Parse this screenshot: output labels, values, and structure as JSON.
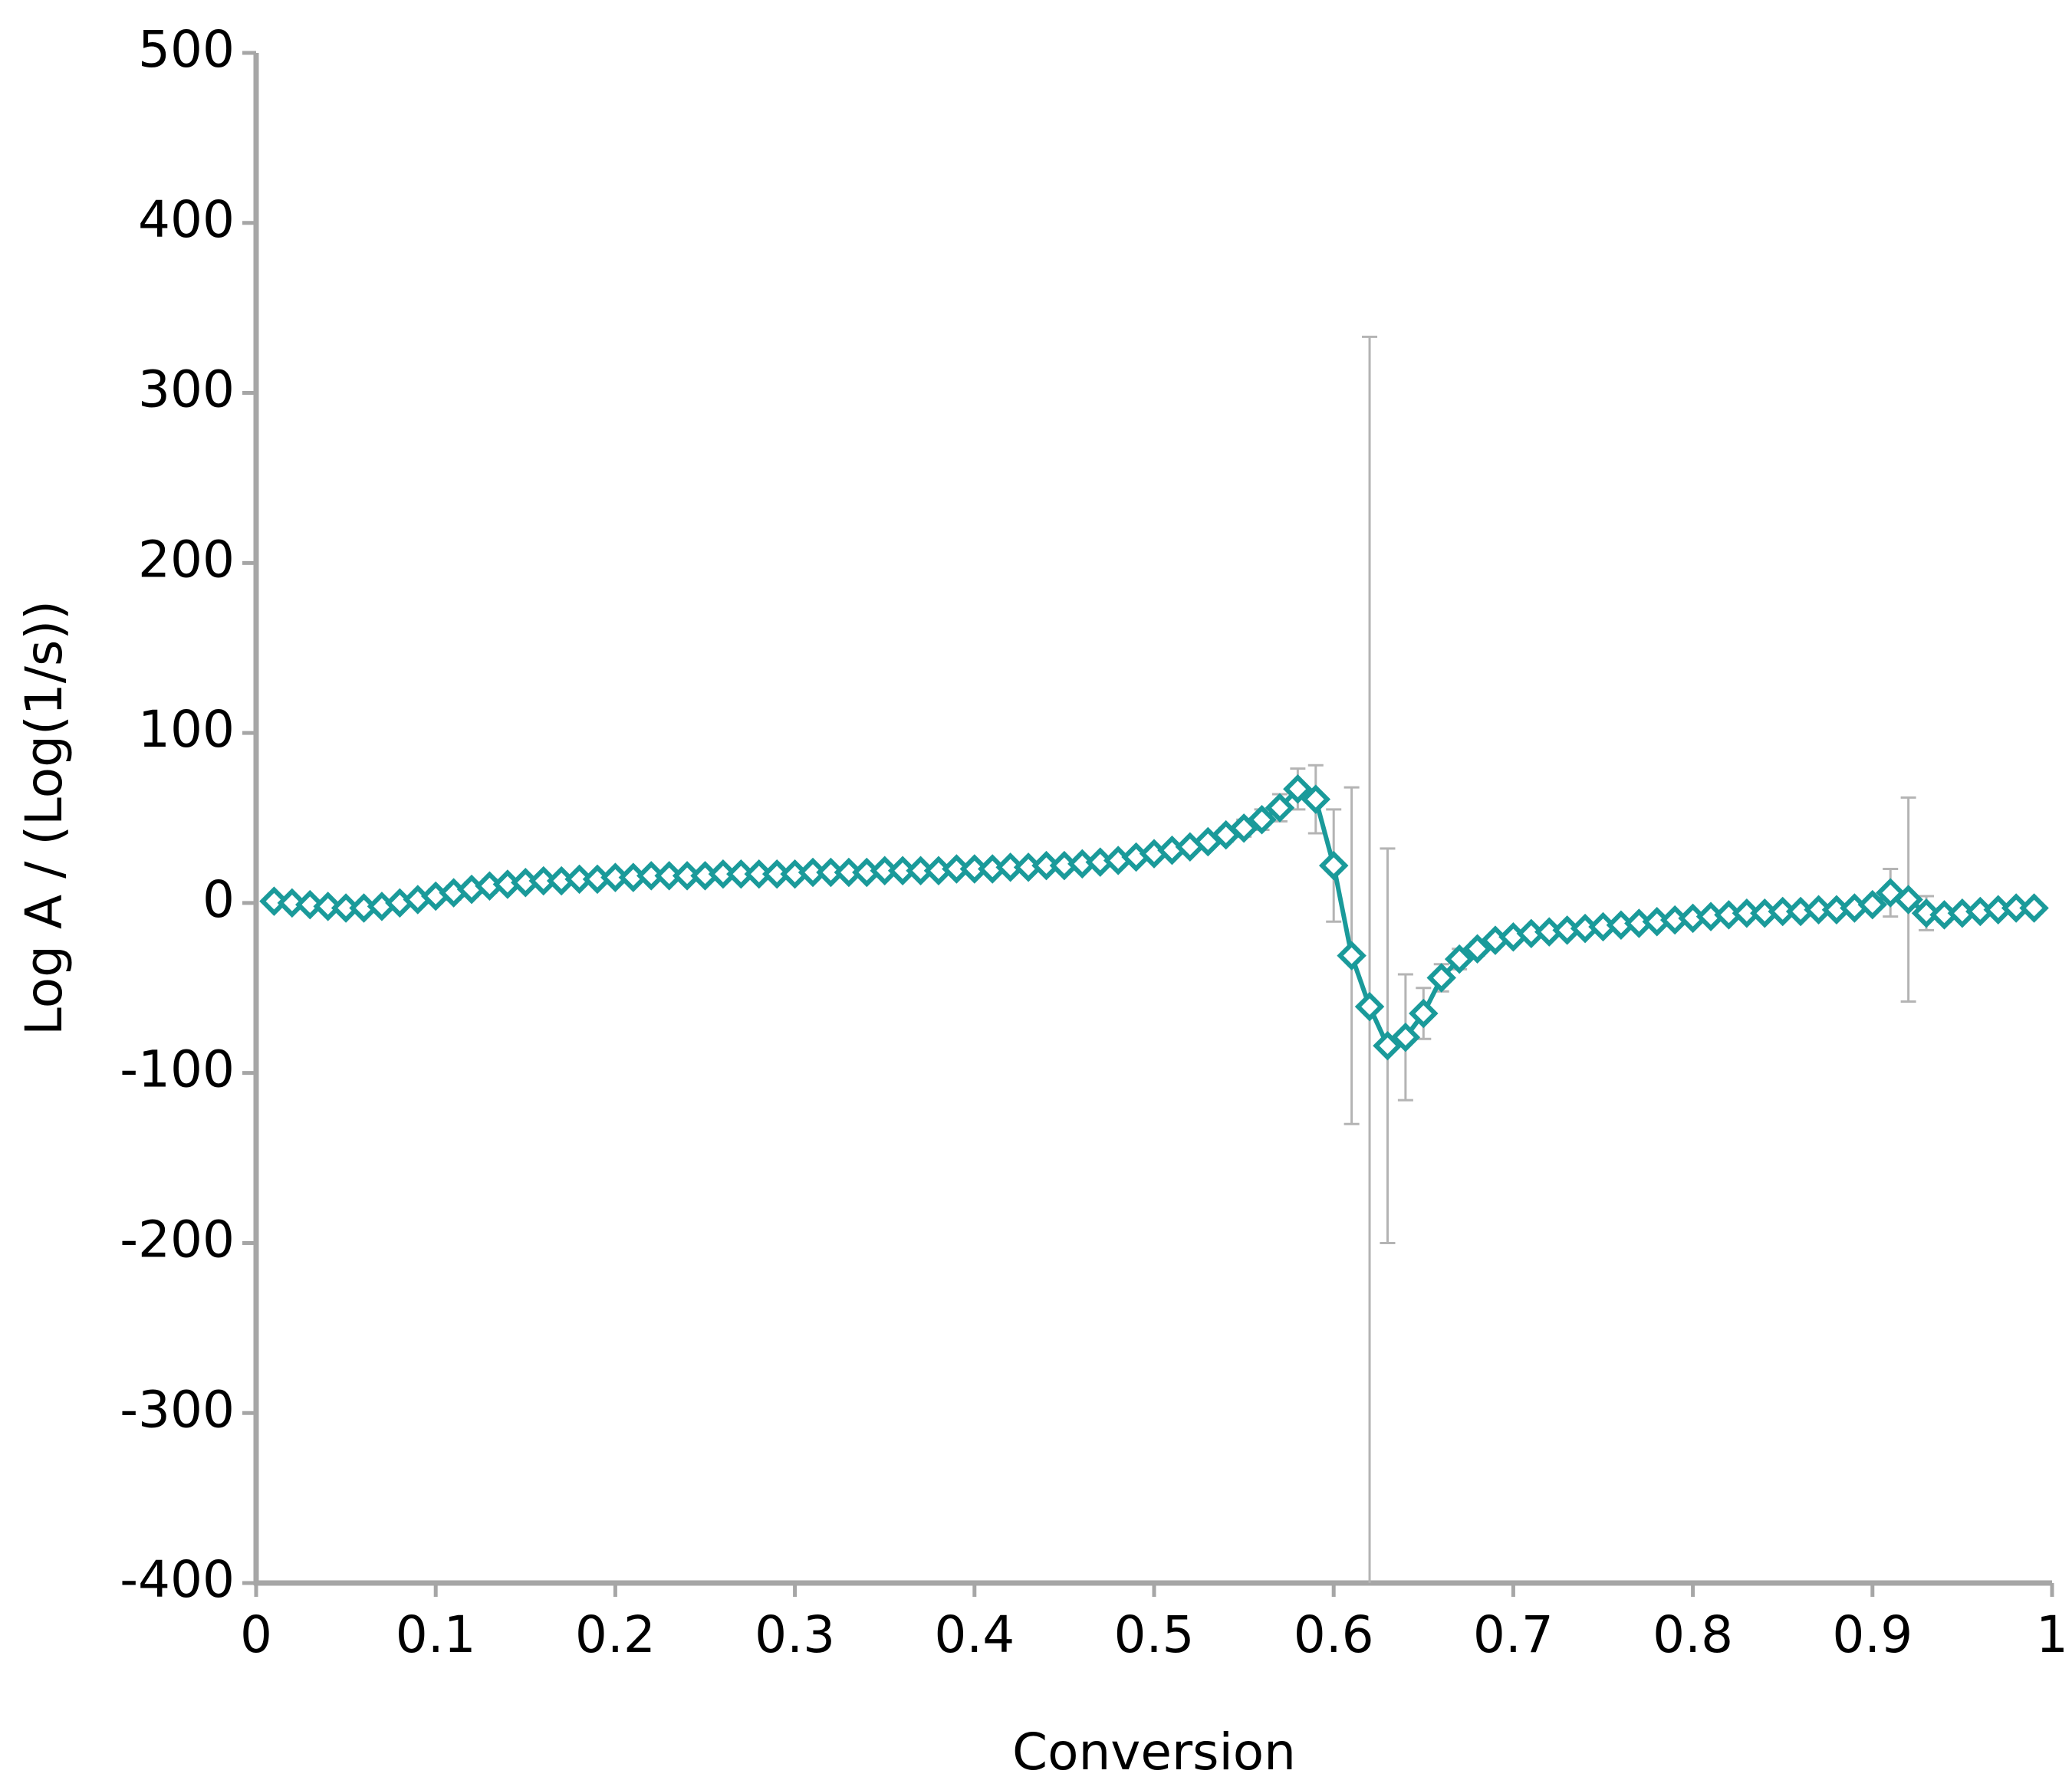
{
  "chart_data": {
    "type": "line",
    "x_label": "Conversion",
    "y_label": "Log A / (Log(1/s))",
    "x": [
      0.01,
      0.02,
      0.03,
      0.04,
      0.05,
      0.06,
      0.07,
      0.08,
      0.09,
      0.1,
      0.11,
      0.12,
      0.13,
      0.14,
      0.15,
      0.16,
      0.17,
      0.18,
      0.19,
      0.2,
      0.21,
      0.22,
      0.23,
      0.24,
      0.25,
      0.26,
      0.27,
      0.28,
      0.29,
      0.3,
      0.31,
      0.32,
      0.33,
      0.34,
      0.35,
      0.36,
      0.37,
      0.38,
      0.39,
      0.4,
      0.41,
      0.42,
      0.43,
      0.44,
      0.45,
      0.46,
      0.47,
      0.48,
      0.49,
      0.5,
      0.51,
      0.52,
      0.53,
      0.54,
      0.55,
      0.56,
      0.57,
      0.58,
      0.59,
      0.6,
      0.61,
      0.62,
      0.63,
      0.64,
      0.65,
      0.66,
      0.67,
      0.68,
      0.69,
      0.7,
      0.71,
      0.72,
      0.73,
      0.74,
      0.75,
      0.76,
      0.77,
      0.78,
      0.79,
      0.8,
      0.81,
      0.82,
      0.83,
      0.84,
      0.85,
      0.86,
      0.87,
      0.88,
      0.89,
      0.9,
      0.91,
      0.92,
      0.93,
      0.94,
      0.95,
      0.96,
      0.97,
      0.98,
      0.99
    ],
    "series": [
      {
        "color": "#1a9a9a",
        "error_color": "#b4b4b4",
        "values": [
          1,
          0,
          -1,
          -2,
          -3,
          -3,
          -2,
          0,
          2,
          4,
          6,
          8,
          10,
          11,
          12,
          13,
          13,
          14,
          14,
          15,
          15,
          16,
          16,
          16,
          16,
          17,
          17,
          17,
          17,
          17,
          18,
          18,
          18,
          18,
          19,
          19,
          19,
          19,
          20,
          20,
          20,
          21,
          21,
          22,
          22,
          23,
          24,
          25,
          27,
          29,
          31,
          33,
          36,
          40,
          44,
          49,
          56,
          67,
          61,
          22,
          -31,
          -61,
          -84,
          -79,
          -65,
          -44,
          -33,
          -27,
          -22,
          -20,
          -18,
          -17,
          -16,
          -15,
          -14,
          -13,
          -12,
          -11,
          -10,
          -9,
          -8,
          -7,
          -6,
          -6,
          -5,
          -5,
          -4,
          -4,
          -3,
          -1,
          6,
          2,
          -6,
          -7,
          -6,
          -5,
          -4,
          -3,
          -3
        ],
        "errors": [
          1,
          1,
          1,
          1,
          1,
          1,
          2,
          2,
          3,
          4,
          4,
          4,
          4,
          3,
          3,
          3,
          2,
          2,
          2,
          2,
          2,
          2,
          2,
          2,
          2,
          2,
          2,
          2,
          2,
          2,
          2,
          2,
          2,
          2,
          2,
          2,
          2,
          2,
          2,
          2,
          2,
          2,
          2,
          2,
          2,
          3,
          3,
          3,
          3,
          3,
          3,
          3,
          3,
          4,
          5,
          6,
          8,
          12,
          20,
          33,
          99,
          394,
          116,
          37,
          15,
          8,
          6,
          4,
          3,
          3,
          2,
          2,
          2,
          2,
          2,
          2,
          2,
          2,
          2,
          2,
          2,
          2,
          2,
          2,
          2,
          2,
          2,
          2,
          2,
          3,
          14,
          60,
          10,
          4,
          3,
          2,
          2,
          2,
          2
        ]
      }
    ],
    "xlim": [
      0,
      1
    ],
    "xticks": [
      0,
      0.1,
      0.2,
      0.3,
      0.4,
      0.5,
      0.6,
      0.7,
      0.8,
      0.9,
      1
    ],
    "ylim": [
      -400,
      500
    ],
    "yticks": [
      500,
      400,
      300,
      200,
      100,
      0,
      -100,
      -200,
      -300,
      -400
    ],
    "axis_color": "#a6a6a6"
  }
}
